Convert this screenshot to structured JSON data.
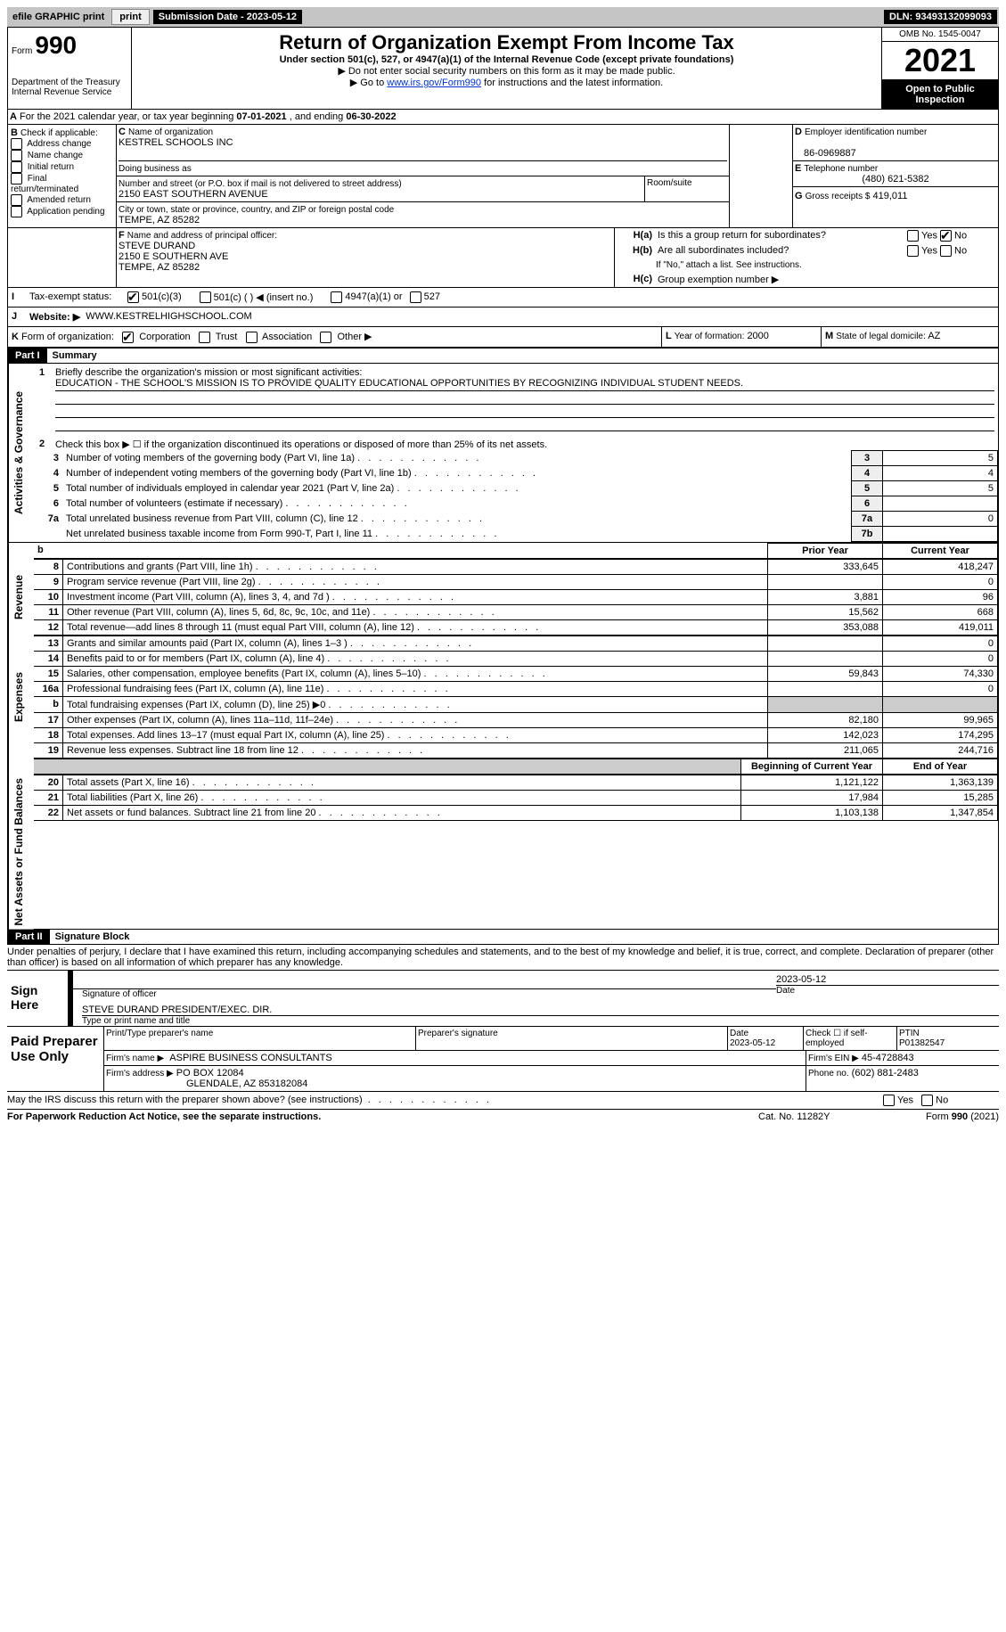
{
  "top": {
    "efile": "efile GRAPHIC print",
    "submission_label": "Submission Date - ",
    "submission_date": "2023-05-12",
    "dln_label": "DLN: ",
    "dln": "93493132099093"
  },
  "header": {
    "form_label": "Form",
    "form_number": "990",
    "dept": "Department of the Treasury\nInternal Revenue Service",
    "title": "Return of Organization Exempt From Income Tax",
    "subtitle": "Under section 501(c), 527, or 4947(a)(1) of the Internal Revenue Code (except private foundations)",
    "note1": "▶ Do not enter social security numbers on this form as it may be made public.",
    "note2_pre": "▶ Go to ",
    "note2_link": "www.irs.gov/Form990",
    "note2_post": " for instructions and the latest information.",
    "omb": "OMB No. 1545-0047",
    "year": "2021",
    "open": "Open to Public Inspection"
  },
  "lineA": {
    "text_pre": "For the 2021 calendar year, or tax year beginning ",
    "begin": "07-01-2021",
    "mid": " , and ending ",
    "end": "06-30-2022"
  },
  "boxB": {
    "label": "Check if applicable:",
    "opts": [
      "Address change",
      "Name change",
      "Initial return",
      "Final return/terminated",
      "Amended return",
      "Application pending"
    ]
  },
  "boxC": {
    "name_label": "Name of organization",
    "name": "KESTREL SCHOOLS INC",
    "dba_label": "Doing business as",
    "street_label": "Number and street (or P.O. box if mail is not delivered to street address)",
    "room_label": "Room/suite",
    "street": "2150 EAST SOUTHERN AVENUE",
    "city_label": "City or town, state or province, country, and ZIP or foreign postal code",
    "city": "TEMPE, AZ  85282"
  },
  "boxD": {
    "label": "Employer identification number",
    "value": "86-0969887"
  },
  "boxE": {
    "label": "Telephone number",
    "value": "(480) 621-5382"
  },
  "boxG": {
    "label": "Gross receipts $",
    "value": "419,011"
  },
  "boxF": {
    "label": "Name and address of principal officer:",
    "v1": "STEVE DURAND",
    "v2": "2150 E SOUTHERN AVE",
    "v3": "TEMPE, AZ  85282"
  },
  "boxH": {
    "a": "Is this a group return for subordinates?",
    "b": "Are all subordinates included?",
    "note": "If \"No,\" attach a list. See instructions.",
    "c": "Group exemption number ▶"
  },
  "boxI": {
    "label": "Tax-exempt status:",
    "o1": "501(c)(3)",
    "o2": "501(c) (   ) ◀ (insert no.)",
    "o3": "4947(a)(1) or",
    "o4": "527"
  },
  "boxJ": {
    "label": "Website: ▶",
    "value": "WWW.KESTRELHIGHSCHOOL.COM"
  },
  "boxK": {
    "label": "Form of organization:",
    "opts": [
      "Corporation",
      "Trust",
      "Association",
      "Other ▶"
    ]
  },
  "boxL": {
    "label": "Year of formation:",
    "value": "2000"
  },
  "boxM": {
    "label": "State of legal domicile:",
    "value": "AZ"
  },
  "part1": {
    "header": "Part I",
    "title": "Summary",
    "l1_label": "Briefly describe the organization's mission or most significant activities:",
    "l1_text": "EDUCATION - THE SCHOOL'S MISSION IS TO PROVIDE QUALITY EDUCATIONAL OPPORTUNITIES BY RECOGNIZING INDIVIDUAL STUDENT NEEDS.",
    "l2": "Check this box ▶ ☐ if the organization discontinued its operations or disposed of more than 25% of its net assets.",
    "lines_gov": [
      {
        "n": "3",
        "t": "Number of voting members of the governing body (Part VI, line 1a)",
        "box": "3",
        "v": "5"
      },
      {
        "n": "4",
        "t": "Number of independent voting members of the governing body (Part VI, line 1b)",
        "box": "4",
        "v": "4"
      },
      {
        "n": "5",
        "t": "Total number of individuals employed in calendar year 2021 (Part V, line 2a)",
        "box": "5",
        "v": "5"
      },
      {
        "n": "6",
        "t": "Total number of volunteers (estimate if necessary)",
        "box": "6",
        "v": ""
      },
      {
        "n": "7a",
        "t": "Total unrelated business revenue from Part VIII, column (C), line 12",
        "box": "7a",
        "v": "0"
      },
      {
        "n": "",
        "t": "Net unrelated business taxable income from Form 990-T, Part I, line 11",
        "box": "7b",
        "v": ""
      }
    ],
    "col_prior": "Prior Year",
    "col_current": "Current Year",
    "lines_rev": [
      {
        "n": "8",
        "t": "Contributions and grants (Part VIII, line 1h)",
        "p": "333,645",
        "c": "418,247"
      },
      {
        "n": "9",
        "t": "Program service revenue (Part VIII, line 2g)",
        "p": "",
        "c": "0"
      },
      {
        "n": "10",
        "t": "Investment income (Part VIII, column (A), lines 3, 4, and 7d )",
        "p": "3,881",
        "c": "96"
      },
      {
        "n": "11",
        "t": "Other revenue (Part VIII, column (A), lines 5, 6d, 8c, 9c, 10c, and 11e)",
        "p": "15,562",
        "c": "668"
      },
      {
        "n": "12",
        "t": "Total revenue—add lines 8 through 11 (must equal Part VIII, column (A), line 12)",
        "p": "353,088",
        "c": "419,011"
      }
    ],
    "lines_exp": [
      {
        "n": "13",
        "t": "Grants and similar amounts paid (Part IX, column (A), lines 1–3 )",
        "p": "",
        "c": "0"
      },
      {
        "n": "14",
        "t": "Benefits paid to or for members (Part IX, column (A), line 4)",
        "p": "",
        "c": "0"
      },
      {
        "n": "15",
        "t": "Salaries, other compensation, employee benefits (Part IX, column (A), lines 5–10)",
        "p": "59,843",
        "c": "74,330"
      },
      {
        "n": "16a",
        "t": "Professional fundraising fees (Part IX, column (A), line 11e)",
        "p": "",
        "c": "0"
      },
      {
        "n": "b",
        "t": "Total fundraising expenses (Part IX, column (D), line 25) ▶0",
        "p": "SHADE",
        "c": "SHADE"
      },
      {
        "n": "17",
        "t": "Other expenses (Part IX, column (A), lines 11a–11d, 11f–24e)",
        "p": "82,180",
        "c": "99,965"
      },
      {
        "n": "18",
        "t": "Total expenses. Add lines 13–17 (must equal Part IX, column (A), line 25)",
        "p": "142,023",
        "c": "174,295"
      },
      {
        "n": "19",
        "t": "Revenue less expenses. Subtract line 18 from line 12",
        "p": "211,065",
        "c": "244,716"
      }
    ],
    "col_begin": "Beginning of Current Year",
    "col_end": "End of Year",
    "lines_net": [
      {
        "n": "20",
        "t": "Total assets (Part X, line 16)",
        "p": "1,121,122",
        "c": "1,363,139"
      },
      {
        "n": "21",
        "t": "Total liabilities (Part X, line 26)",
        "p": "17,984",
        "c": "15,285"
      },
      {
        "n": "22",
        "t": "Net assets or fund balances. Subtract line 21 from line 20",
        "p": "1,103,138",
        "c": "1,347,854"
      }
    ]
  },
  "part2": {
    "header": "Part II",
    "title": "Signature Block",
    "penalty": "Under penalties of perjury, I declare that I have examined this return, including accompanying schedules and statements, and to the best of my knowledge and belief, it is true, correct, and complete. Declaration of preparer (other than officer) is based on all information of which preparer has any knowledge.",
    "sign_here": "Sign Here",
    "sig_officer": "Signature of officer",
    "sig_date": "2023-05-12",
    "date_label": "Date",
    "officer_name": "STEVE DURAND  PRESIDENT/EXEC. DIR.",
    "type_name": "Type or print name and title",
    "paid": "Paid Preparer Use Only",
    "print_name": "Print/Type preparer's name",
    "prep_sig": "Preparer's signature",
    "prep_date": "2023-05-12",
    "self_emp": "Check ☐ if self-employed",
    "ptin_label": "PTIN",
    "ptin": "P01382547",
    "firm_name_label": "Firm's name    ▶",
    "firm_name": "ASPIRE BUSINESS CONSULTANTS",
    "firm_ein_label": "Firm's EIN ▶",
    "firm_ein": "45-4728843",
    "firm_addr_label": "Firm's address ▶",
    "firm_addr1": "PO BOX 12084",
    "firm_addr2": "GLENDALE, AZ  853182084",
    "firm_phone_label": "Phone no.",
    "firm_phone": "(602) 881-2483",
    "discuss": "May the IRS discuss this return with the preparer shown above? (see instructions)",
    "footer_left": "For Paperwork Reduction Act Notice, see the separate instructions.",
    "footer_mid": "Cat. No. 11282Y",
    "footer_right": "Form 990 (2021)"
  },
  "labels": {
    "yes": "Yes",
    "no": "No",
    "A": "A",
    "B": "B",
    "C": "C",
    "D": "D",
    "E": "E",
    "F": "F",
    "G": "G",
    "Ha": "H(a)",
    "Hb": "H(b)",
    "Hc": "H(c)",
    "I": "I",
    "J": "J",
    "K": "K",
    "L": "L",
    "M": "M",
    "b": "b",
    "l1": "1",
    "l2": "2",
    "gov": "Activities & Governance",
    "rev": "Revenue",
    "exp": "Expenses",
    "net": "Net Assets or Fund Balances"
  }
}
